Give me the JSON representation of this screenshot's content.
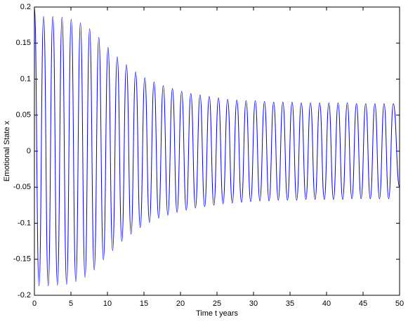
{
  "chart_data": {
    "type": "line",
    "xlabel": "Time t years",
    "ylabel": "Emotional State x",
    "x": [
      0,
      0.63,
      1.26,
      1.89,
      2.52,
      3.15,
      3.78,
      4.41,
      5.04,
      5.67,
      6.3,
      6.93,
      7.56,
      8.19,
      8.82,
      9.45,
      10.08,
      10.71,
      11.34,
      11.97,
      12.6,
      13.23,
      13.86,
      14.49,
      15.12,
      15.75,
      16.38,
      17.01,
      17.64,
      18.27,
      18.9,
      19.53,
      20.16,
      20.79,
      21.42,
      22.05,
      22.68,
      23.31,
      23.94,
      24.57,
      25.2,
      25.83,
      26.46,
      27.09,
      27.72,
      28.35,
      28.98,
      29.61,
      30.24,
      30.87,
      31.5,
      32.13,
      32.76,
      33.39,
      34.02,
      34.65,
      35.28,
      35.91,
      36.54,
      37.17,
      37.8,
      38.43,
      39.06,
      39.69,
      40.32,
      40.95,
      41.58,
      42.21,
      42.84,
      43.47,
      44.1,
      44.73,
      45.36,
      45.99,
      46.62,
      47.25,
      47.88,
      48.51,
      49.14,
      50
    ],
    "series": [
      {
        "color": "#0000ff",
        "values": [
          0.2,
          -0.187,
          0.187,
          -0.187,
          0.187,
          -0.186,
          0.186,
          -0.185,
          0.183,
          -0.181,
          0.178,
          -0.175,
          0.17,
          -0.165,
          0.158,
          -0.151,
          0.144,
          -0.138,
          0.131,
          -0.125,
          0.12,
          -0.115,
          0.11,
          -0.106,
          0.102,
          -0.099,
          0.096,
          -0.093,
          0.091,
          -0.089,
          0.087,
          -0.085,
          0.083,
          -0.082,
          0.08,
          -0.079,
          0.078,
          -0.077,
          0.076,
          -0.075,
          0.074,
          -0.073,
          0.072,
          -0.072,
          0.071,
          -0.071,
          0.07,
          -0.07,
          0.07,
          -0.069,
          0.069,
          -0.069,
          0.068,
          -0.068,
          0.068,
          -0.068,
          0.068,
          -0.068,
          0.067,
          -0.067,
          0.067,
          -0.067,
          0.067,
          -0.067,
          0.067,
          -0.067,
          0.067,
          -0.067,
          0.067,
          -0.066,
          0.066,
          -0.066,
          0.066,
          -0.066,
          0.066,
          -0.066,
          0.066,
          -0.066,
          0.066,
          -0.05
        ]
      }
    ],
    "xlim": [
      0,
      50
    ],
    "xticks": [
      0,
      5,
      10,
      15,
      20,
      25,
      30,
      35,
      40,
      45,
      50
    ],
    "ylim": [
      -0.2,
      0.2
    ],
    "yticks": [
      -0.2,
      -0.15,
      -0.1,
      -0.05,
      0,
      0.05,
      0.1,
      0.15,
      0.2
    ],
    "grid": false
  }
}
